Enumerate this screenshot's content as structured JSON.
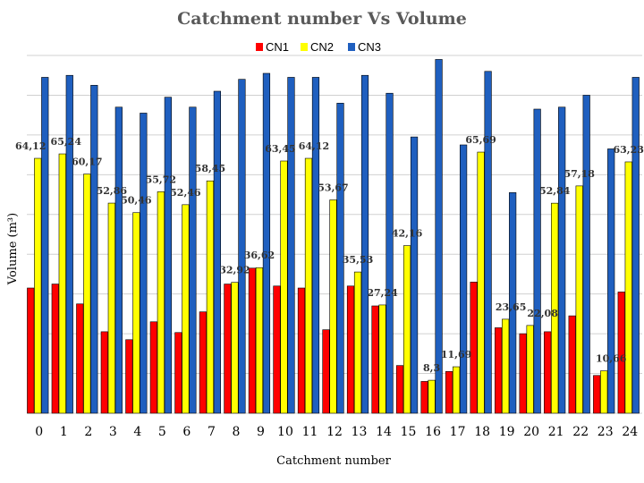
{
  "chart_data": {
    "type": "bar",
    "title": "Catchment number  Vs Volume",
    "xlabel": "Catchment number",
    "ylabel": "Volume (m³)",
    "ylim": [
      0,
      90
    ],
    "gridlines": true,
    "legend_position": "top",
    "categories": [
      "0",
      "1",
      "2",
      "3",
      "4",
      "5",
      "6",
      "7",
      "8",
      "9",
      "10",
      "11",
      "12",
      "13",
      "14",
      "15",
      "16",
      "17",
      "18",
      "19",
      "20",
      "21",
      "22",
      "23",
      "24"
    ],
    "series": [
      {
        "name": "CN1",
        "color": "#ff0000",
        "values": [
          31.5,
          32.5,
          27.5,
          20.5,
          18.5,
          23.0,
          20.3,
          25.5,
          32.5,
          36.5,
          32.0,
          31.5,
          21.0,
          32.0,
          27.0,
          12.0,
          8.0,
          10.5,
          33.0,
          21.5,
          20.0,
          20.5,
          24.5,
          9.5,
          30.5
        ],
        "labels": [
          "",
          "",
          "",
          "",
          "",
          "",
          "",
          "",
          "",
          "",
          "",
          "",
          "",
          "",
          "",
          "",
          "",
          "",
          "",
          "",
          "",
          "",
          "",
          "",
          ""
        ]
      },
      {
        "name": "CN2",
        "color": "#ffff00",
        "values": [
          64.12,
          65.24,
          60.17,
          52.86,
          50.46,
          55.72,
          52.46,
          58.45,
          32.92,
          36.62,
          63.45,
          64.12,
          53.67,
          35.53,
          27.24,
          42.16,
          8.3,
          11.69,
          65.69,
          23.65,
          22.08,
          52.84,
          57.18,
          10.66,
          63.23
        ],
        "labels": [
          "64,12",
          "65,24",
          "60,17",
          "52,86",
          "50,46",
          "55,72",
          "52,46",
          "58,45",
          "32,92",
          "36,62",
          "63,45",
          "64,12",
          "53,67",
          "35,53",
          "27,24",
          "42,16",
          "8,3",
          "11,69",
          "65,69",
          "23,65",
          "22,08",
          "52,84",
          "57,18",
          "10,66",
          "63,23"
        ]
      },
      {
        "name": "CN3",
        "color": "#1f5fbf",
        "values": [
          84.5,
          85.0,
          82.5,
          77.0,
          75.5,
          79.5,
          77.0,
          81.0,
          84.0,
          85.5,
          84.5,
          84.5,
          78.0,
          85.0,
          80.5,
          69.5,
          89.0,
          67.5,
          86.0,
          55.5,
          76.5,
          77.0,
          80.0,
          66.5,
          84.5
        ]
      }
    ]
  }
}
